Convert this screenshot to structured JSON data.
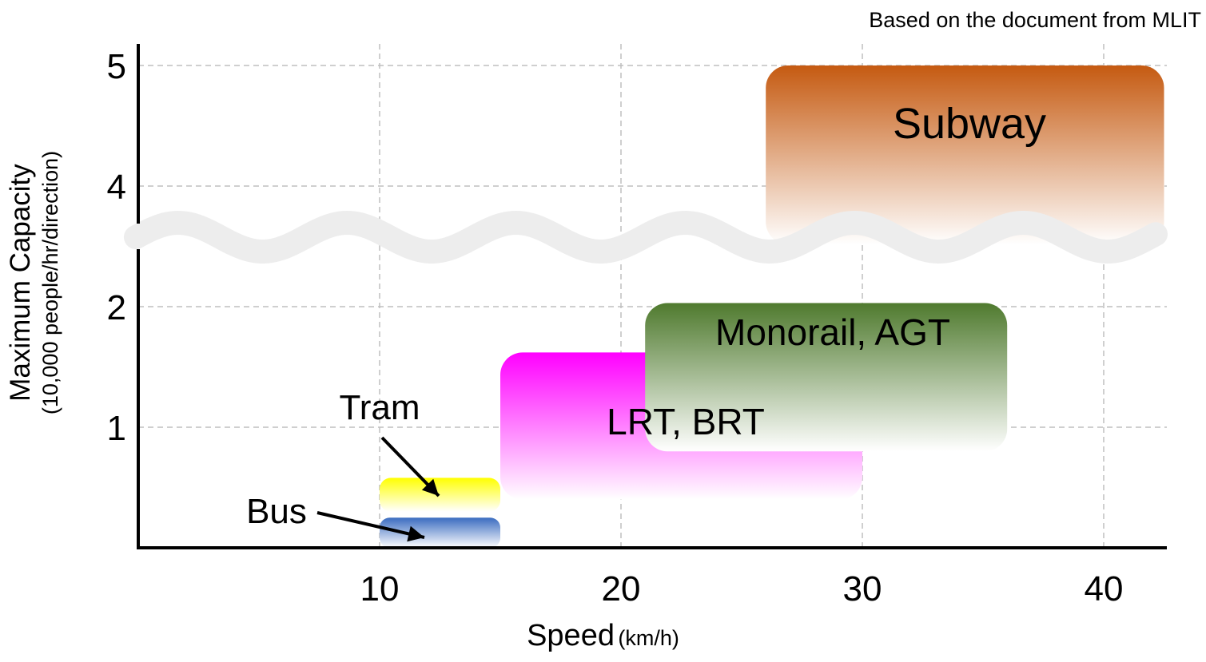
{
  "source_note": "Based on the document from MLIT",
  "chart_data": {
    "type": "range-box",
    "xlabel": "Speed",
    "xlabel_unit": "(km/h)",
    "ylabel": "Maximum Capacity",
    "ylabel_unit": "(10,000 people/hr/direction)",
    "xlim": [
      0,
      42.5
    ],
    "ylim": [
      0,
      5.2
    ],
    "x_ticks": [
      10,
      20,
      30,
      40
    ],
    "y_ticks": [
      1,
      2,
      4,
      5
    ],
    "axis_break": {
      "between": [
        2.2,
        3.9
      ]
    },
    "grid": true,
    "series": [
      {
        "name": "Bus",
        "x": [
          10,
          15
        ],
        "y": [
          0,
          0.25
        ],
        "color_top": "#3a6cc0",
        "color_bottom": "#ffffff"
      },
      {
        "name": "Tram",
        "x": [
          10,
          15
        ],
        "y": [
          0.3,
          0.58
        ],
        "color_top": "#ffff00",
        "color_bottom": "#ffffff"
      },
      {
        "name": "LRT, BRT",
        "x": [
          15,
          30
        ],
        "y": [
          0.4,
          1.62
        ],
        "color_top": "#ff00ff",
        "color_bottom": "#ffffff"
      },
      {
        "name": "Monorail, AGT",
        "x": [
          21,
          36
        ],
        "y": [
          0.8,
          2.03
        ],
        "color_top": "#4f7a2e",
        "color_bottom": "#ffffff"
      },
      {
        "name": "Subway",
        "x": [
          26,
          42.5
        ],
        "y": [
          2.8,
          5.0
        ],
        "color_top": "#c55a11",
        "color_bottom": "#ffffff"
      }
    ]
  }
}
